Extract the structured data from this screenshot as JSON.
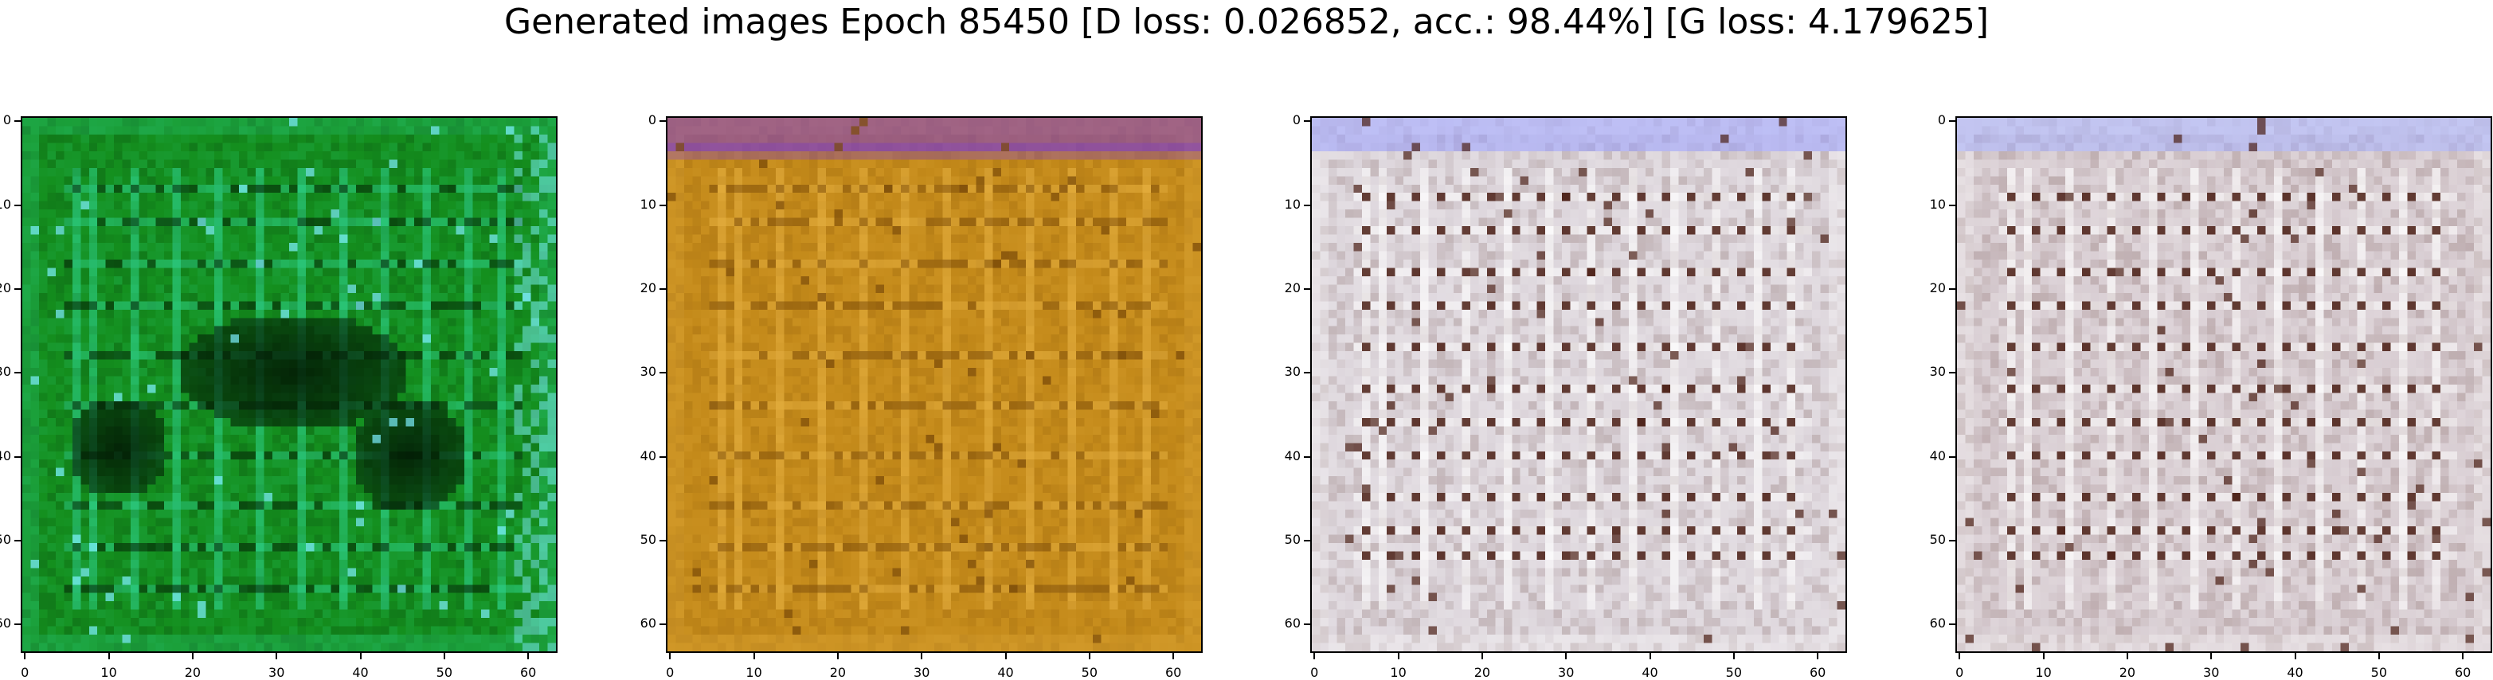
{
  "figure": {
    "suptitle": "Generated images Epoch 85450 [D loss: 0.026852, acc.: 98.44%] [G loss: 4.179625]"
  },
  "panels": [
    {
      "id": "sample-1",
      "palette": {
        "base": "#148f1e",
        "dark": "#021a04",
        "light": "#2ed08a",
        "accent": "#7ef0ff"
      },
      "dark_blob": true,
      "style": "green"
    },
    {
      "id": "sample-2",
      "palette": {
        "base": "#c48a1a",
        "dark": "#7a4a08",
        "light": "#e6b040",
        "accent": "#7a3ad0"
      },
      "dark_blob": false,
      "style": "orange"
    },
    {
      "id": "sample-3",
      "palette": {
        "base": "#ddd6dc",
        "dark": "#4a1e14",
        "light": "#ffffff",
        "accent": "#9aa0ff"
      },
      "dark_blob": false,
      "style": "pale"
    },
    {
      "id": "sample-4",
      "palette": {
        "base": "#d8cdd2",
        "dark": "#4a1e14",
        "light": "#ffffff",
        "accent": "#a7b2ff"
      },
      "dark_blob": false,
      "style": "pale"
    }
  ],
  "axes": {
    "x_ticks": [
      "0",
      "10",
      "20",
      "30",
      "40",
      "50",
      "60"
    ],
    "y_ticks": [
      "0",
      "10",
      "20",
      "30",
      "40",
      "50",
      "60"
    ],
    "xlim": [
      -0.5,
      63.5
    ],
    "ylim": [
      63.5,
      -0.5
    ]
  }
}
